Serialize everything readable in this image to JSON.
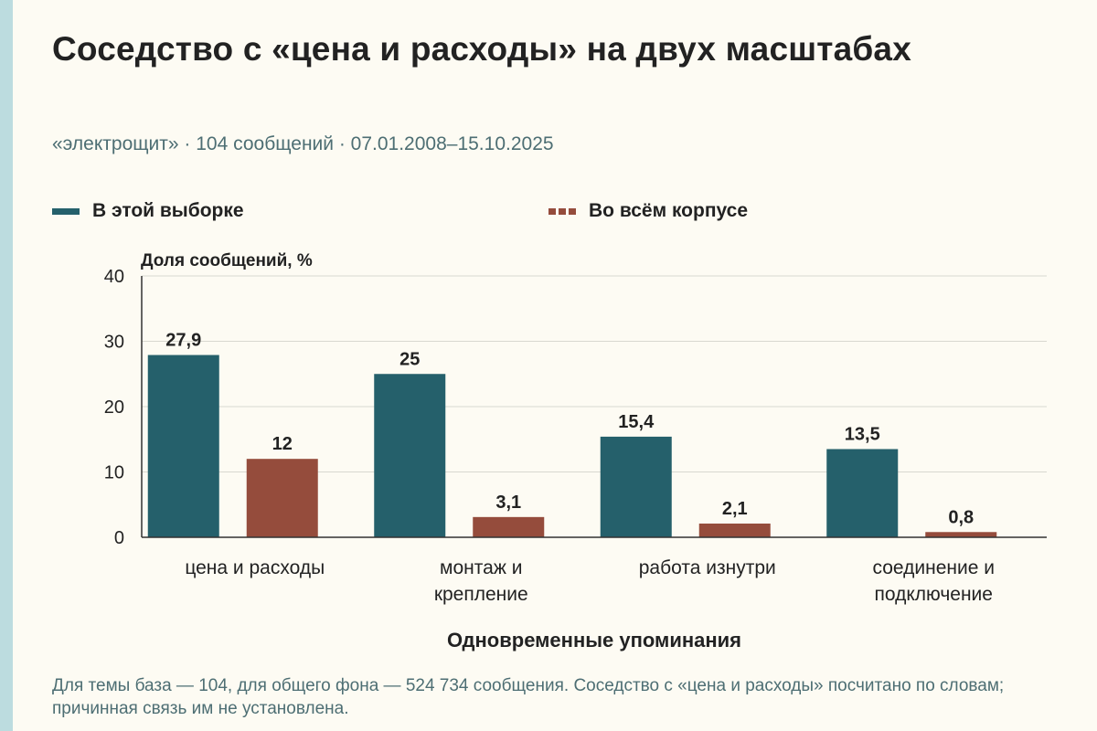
{
  "header": {
    "title": "Соседство с «цена и расходы» на двух масштабах",
    "subtitle": "«электрощит» · 104 сообщений · 07.01.2008–15.10.2025"
  },
  "colors": {
    "sample": "#25606b",
    "corpus": "#954c3c",
    "grid": "#d8d8d0",
    "axis": "#333333",
    "text": "#222222",
    "muted": "#4d6e73"
  },
  "chart_data": {
    "type": "bar",
    "ylabel": "Доля сообщений, %",
    "xlabel": "Одновременные упоминания",
    "ylim": [
      0,
      40
    ],
    "yticks": [
      "0",
      "10",
      "20",
      "30",
      "40"
    ],
    "grid": true,
    "legend_position": "top",
    "categories": [
      [
        "цена и расходы"
      ],
      [
        "монтаж и",
        "крепление"
      ],
      [
        "работа изнутри"
      ],
      [
        "соединение и",
        "подключение"
      ]
    ],
    "series": [
      {
        "name": "В этой выборке",
        "values": [
          27.9,
          25,
          15.4,
          13.5
        ],
        "labels": [
          "27,9",
          "25",
          "15,4",
          "13,5"
        ]
      },
      {
        "name": "Во всём корпусе",
        "values": [
          12,
          3.1,
          2.1,
          0.8
        ],
        "labels": [
          "12",
          "3,1",
          "2,1",
          "0,8"
        ]
      }
    ]
  },
  "footnote": "Для темы база — 104, для общего фона — 524 734 сообщения. Соседство с «цена и расходы» посчитано по словам; причинная связь им не установлена."
}
